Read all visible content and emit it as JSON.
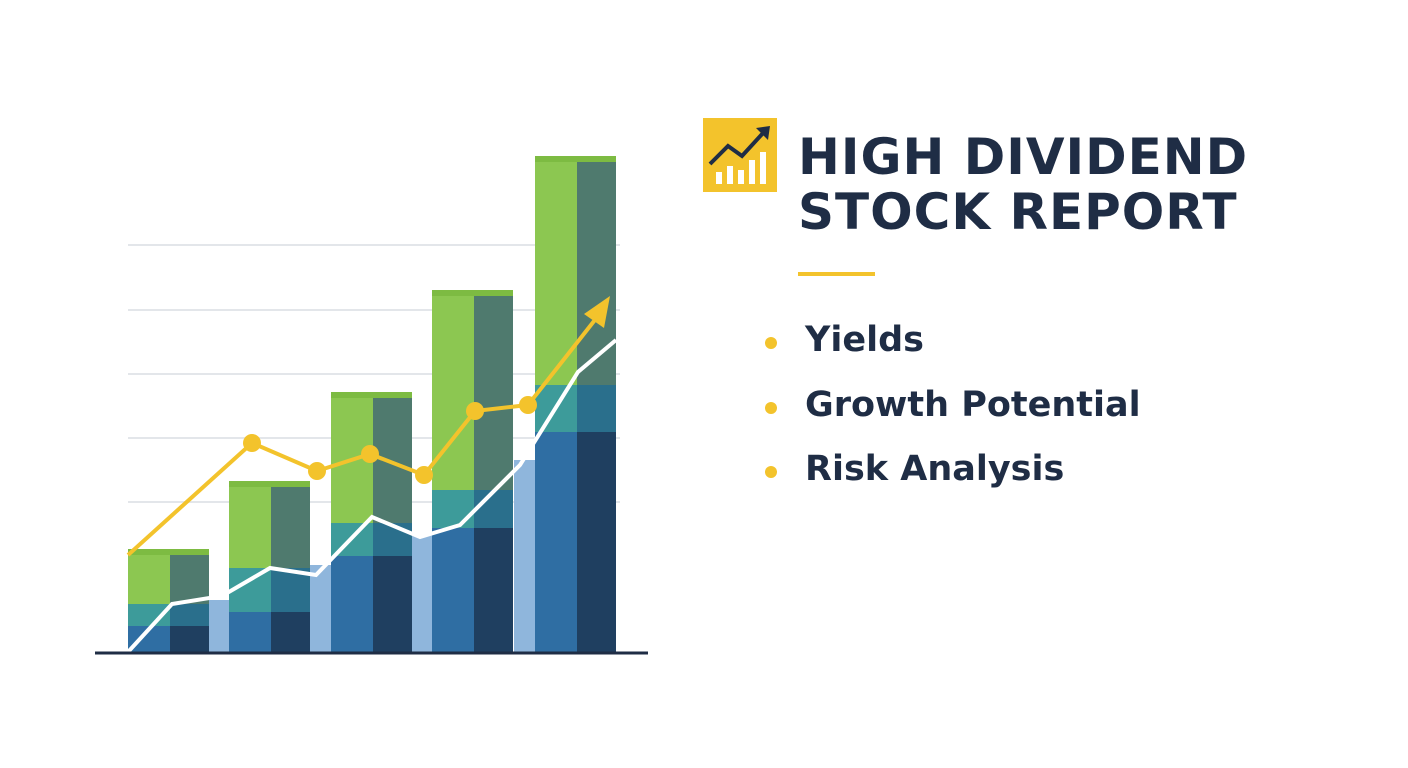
{
  "header": {
    "title_lines": [
      "HIGH DIVIDEND",
      "STOCK REPORT"
    ]
  },
  "bullets": [
    "Yields",
    "Growth Potential",
    "Risk Analysis"
  ]
}
